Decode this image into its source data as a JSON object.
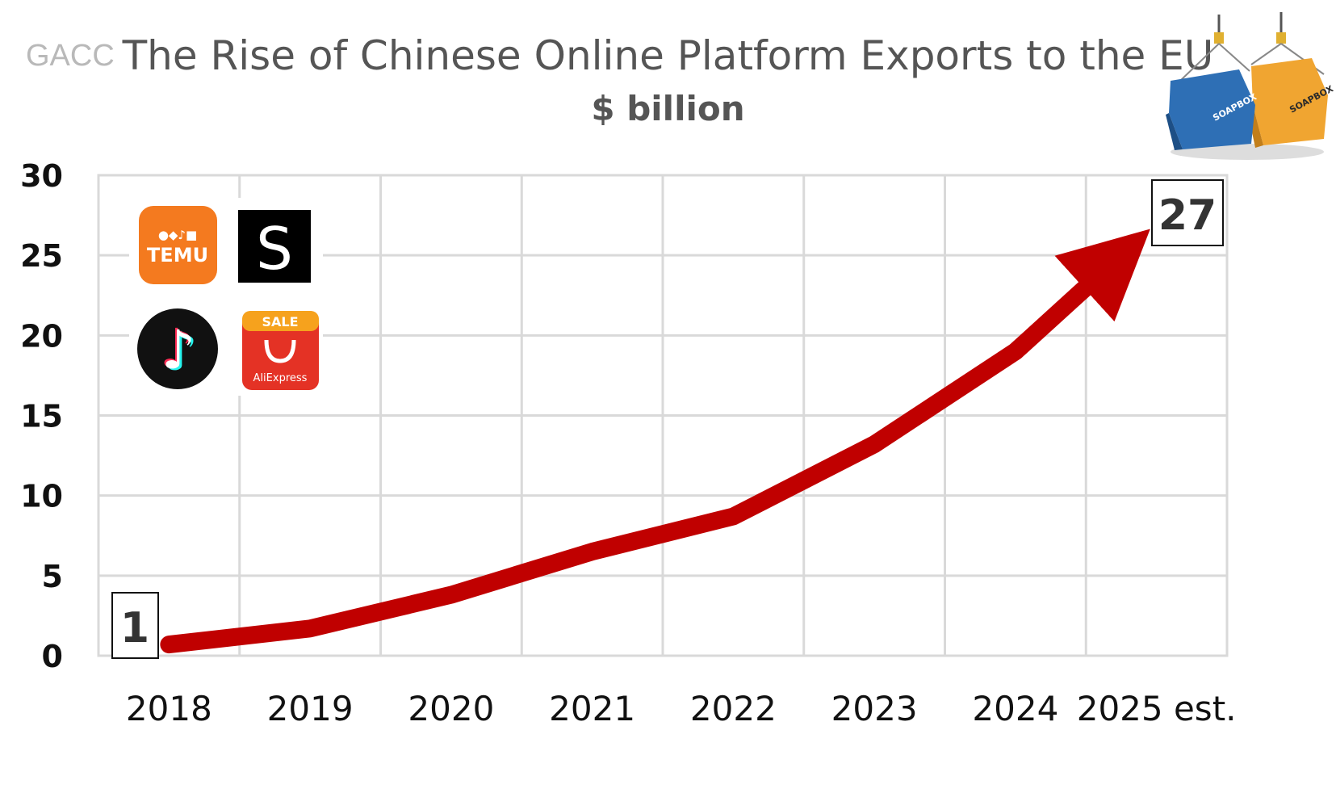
{
  "header": {
    "source": "GACC",
    "title": "The Rise of Chinese Online Platform Exports to the EU",
    "subtitle": "$ billion"
  },
  "logos": {
    "temu": "TEMU",
    "shein": "S",
    "aliexpress_sale": "SALE",
    "aliexpress": "AliExpress",
    "container_brand": "SOAPBOX"
  },
  "colors": {
    "line": "#c00000",
    "grid": "#d9d9d9",
    "temu": "#f47a1f",
    "aliexpress": "#e43225",
    "container_blue": "#2e6fb5",
    "container_orange": "#f0a531"
  },
  "chart_data": {
    "type": "line",
    "title": "The Rise of Chinese Online Platform Exports to the EU",
    "subtitle": "$ billion",
    "categories": [
      "2018",
      "2019",
      "2020",
      "2021",
      "2022",
      "2023",
      "2024",
      "2025 est."
    ],
    "values": [
      0.7,
      1.7,
      3.8,
      6.5,
      8.7,
      13.2,
      19.0,
      27.0
    ],
    "ylim": [
      0,
      30
    ],
    "yticks": [
      0,
      5,
      10,
      15,
      20,
      25,
      30
    ],
    "grid": true,
    "annotations": [
      {
        "label": "1",
        "category": "2018"
      },
      {
        "label": "27",
        "category": "2025 est."
      }
    ]
  }
}
